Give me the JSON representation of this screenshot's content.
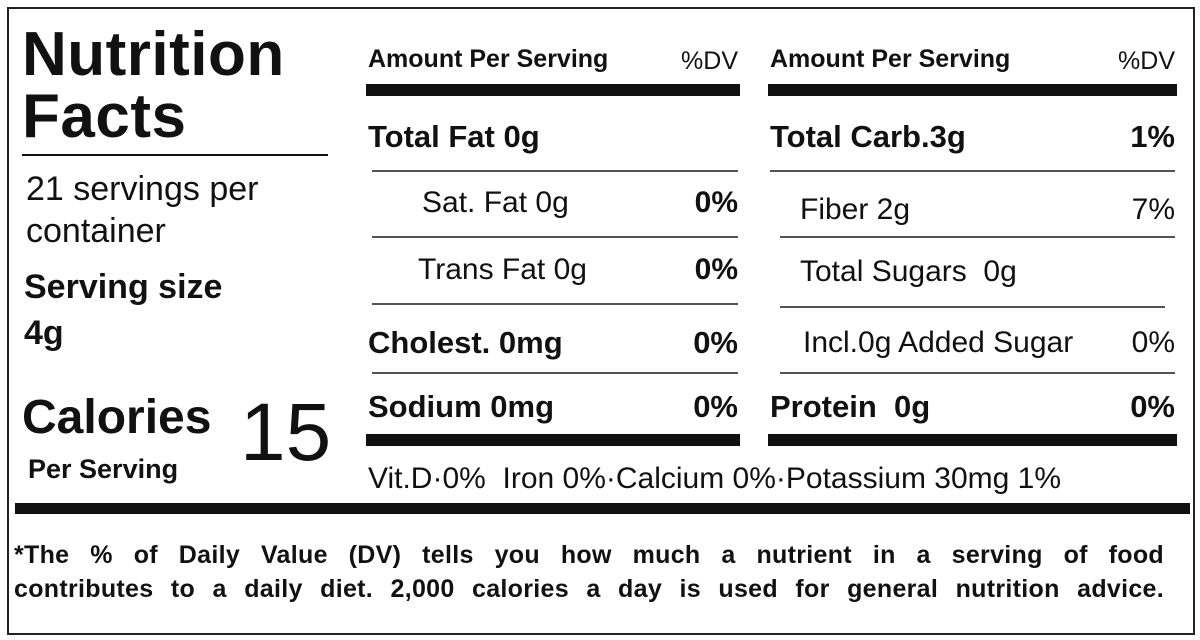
{
  "title": "Nutrition Facts",
  "servings": "21 servings per container",
  "serving_size": {
    "label": "Serving size",
    "value": "4g"
  },
  "calories": {
    "label": "Calories",
    "sub": "Per Serving",
    "value": 15
  },
  "columns": [
    {
      "header": {
        "amount": "Amount Per Serving",
        "dv": "%DV"
      },
      "rows": [
        {
          "label": "Total Fat 0g"
        },
        {
          "label": "Sat. Fat 0g",
          "dv": "0%"
        },
        {
          "label": "Trans Fat 0g",
          "dv": "0%"
        },
        {
          "label": "Cholest. 0mg",
          "dv": "0%"
        },
        {
          "label": "Sodium 0mg",
          "dv": "0%"
        }
      ]
    },
    {
      "header": {
        "amount": "Amount Per Serving",
        "dv": "%DV"
      },
      "rows": [
        {
          "label": "Total Carb.3g",
          "dv": "1%"
        },
        {
          "label": "Fiber 2g",
          "dv": "7%"
        },
        {
          "label": "Total Sugars  0g"
        },
        {
          "label": "Incl.0g Added Sugar",
          "dv": "0%"
        },
        {
          "label": "Protein  0g",
          "dv": "0%"
        }
      ]
    }
  ],
  "micronutrients": "Vit.D·0%  Iron 0%·Calcium 0%·Potassium 30mg 1%",
  "footnote": [
    "*The % of Daily Value (DV) tells you how much a nutrient in a serving of food",
    "contributes to a daily diet. 2,000 calories a day is used for general nutrition advice."
  ]
}
